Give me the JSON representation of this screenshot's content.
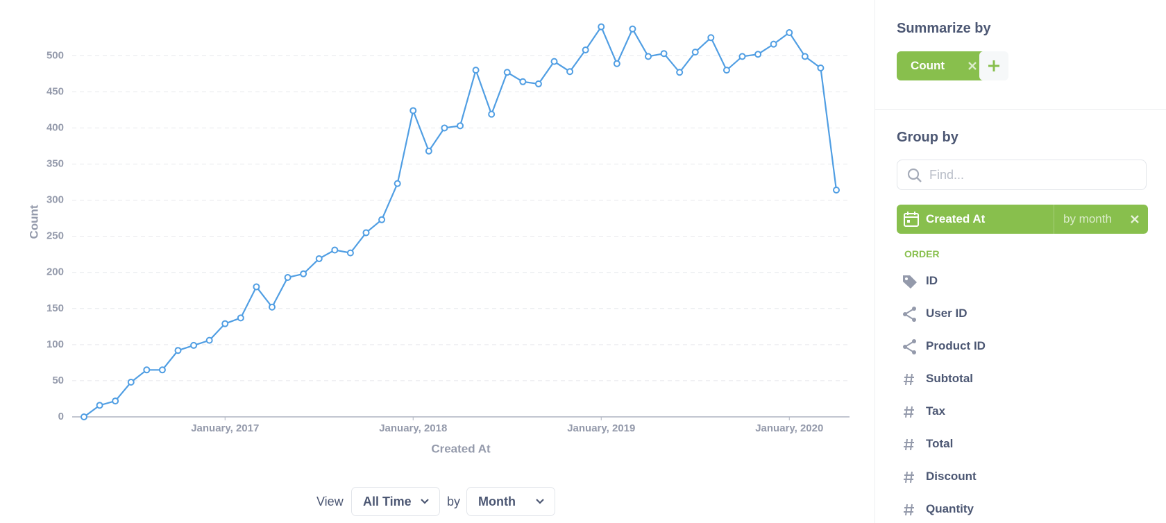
{
  "chart_data": {
    "type": "line",
    "x_label": "Created At",
    "y_label": "Count",
    "x": [
      "2016-04",
      "2016-05",
      "2016-06",
      "2016-07",
      "2016-08",
      "2016-09",
      "2016-10",
      "2016-11",
      "2016-12",
      "2017-01",
      "2017-02",
      "2017-03",
      "2017-04",
      "2017-05",
      "2017-06",
      "2017-07",
      "2017-08",
      "2017-09",
      "2017-10",
      "2017-11",
      "2017-12",
      "2018-01",
      "2018-02",
      "2018-03",
      "2018-04",
      "2018-05",
      "2018-06",
      "2018-07",
      "2018-08",
      "2018-09",
      "2018-10",
      "2018-11",
      "2018-12",
      "2019-01",
      "2019-02",
      "2019-03",
      "2019-04",
      "2019-05",
      "2019-06",
      "2019-07",
      "2019-08",
      "2019-09",
      "2019-10",
      "2019-11",
      "2019-12",
      "2020-01",
      "2020-02",
      "2020-03",
      "2020-04"
    ],
    "values": [
      0,
      16,
      22,
      48,
      65,
      65,
      92,
      99,
      106,
      129,
      137,
      180,
      152,
      193,
      198,
      219,
      231,
      227,
      255,
      273,
      323,
      424,
      368,
      400,
      403,
      480,
      419,
      477,
      464,
      461,
      492,
      478,
      508,
      540,
      489,
      537,
      499,
      503,
      477,
      505,
      525,
      480,
      499,
      502,
      516,
      532,
      499,
      483,
      314
    ],
    "color": "#509ee3",
    "xlim": [
      "2016-04",
      "2020-04"
    ],
    "xticks": [
      {
        "value": "2017-01",
        "label": "January, 2017"
      },
      {
        "value": "2018-01",
        "label": "January, 2018"
      },
      {
        "value": "2019-01",
        "label": "January, 2019"
      },
      {
        "value": "2020-01",
        "label": "January, 2020"
      }
    ],
    "ylim": [
      0,
      556
    ],
    "yticks": [
      0,
      50,
      100,
      150,
      200,
      250,
      300,
      350,
      400,
      450,
      500
    ],
    "grid": true
  },
  "controls": {
    "view": "View",
    "range": "All Time",
    "by": "by",
    "unit": "Month"
  },
  "sidebar": {
    "summarize_title": "Summarize by",
    "metric": "Count",
    "group_title": "Group by",
    "search_placeholder": "Find...",
    "selected": {
      "label": "Created At",
      "bucket": "by month"
    },
    "section": "ORDER",
    "fields": [
      "ID",
      "User ID",
      "Product ID",
      "Subtotal",
      "Tax",
      "Total",
      "Discount",
      "Quantity"
    ]
  }
}
